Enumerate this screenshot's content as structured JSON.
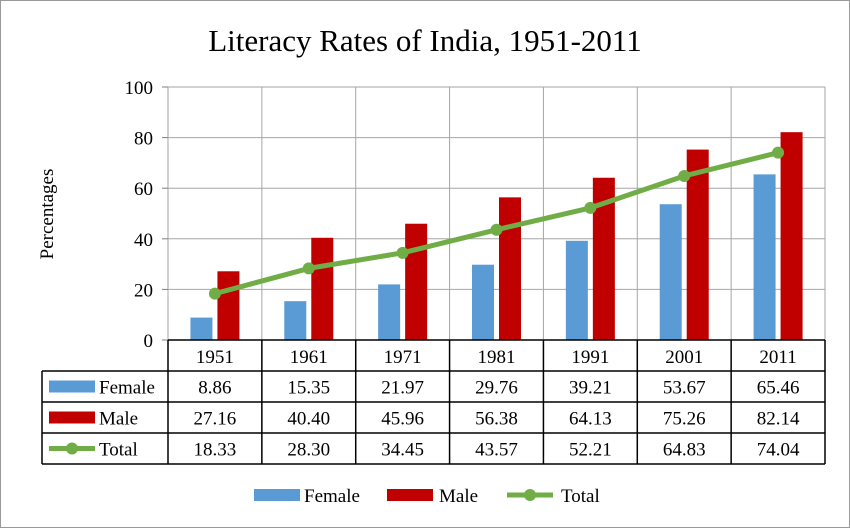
{
  "chart_data": {
    "type": "bar",
    "title": "Literacy Rates of India, 1951-2011",
    "ylabel": "Percentages",
    "xlabel": "",
    "ylim": [
      0,
      100
    ],
    "yticks": [
      0,
      20,
      40,
      60,
      80,
      100
    ],
    "grid": true,
    "legend_position": "bottom",
    "categories": [
      "1951",
      "1961",
      "1971",
      "1981",
      "1991",
      "2001",
      "2011"
    ],
    "series": [
      {
        "name": "Female",
        "type": "bar",
        "color": "#5b9bd5",
        "values": [
          8.86,
          15.35,
          21.97,
          29.76,
          39.21,
          53.67,
          65.46
        ]
      },
      {
        "name": "Male",
        "type": "bar",
        "color": "#c00000",
        "values": [
          27.16,
          40.4,
          45.96,
          56.38,
          64.13,
          75.26,
          82.14
        ]
      },
      {
        "name": "Total",
        "type": "line",
        "color": "#70ad47",
        "values": [
          18.33,
          28.3,
          34.45,
          43.57,
          52.21,
          64.83,
          74.04
        ]
      }
    ],
    "data_table": {
      "rows": [
        {
          "series": "Female",
          "cells": [
            "8.86",
            "15.35",
            "21.97",
            "29.76",
            "39.21",
            "53.67",
            "65.46"
          ]
        },
        {
          "series": "Male",
          "cells": [
            "27.16",
            "40.40",
            "45.96",
            "56.38",
            "64.13",
            "75.26",
            "82.14"
          ]
        },
        {
          "series": "Total",
          "cells": [
            "18.33",
            "28.30",
            "34.45",
            "43.57",
            "52.21",
            "64.83",
            "74.04"
          ]
        }
      ]
    }
  }
}
